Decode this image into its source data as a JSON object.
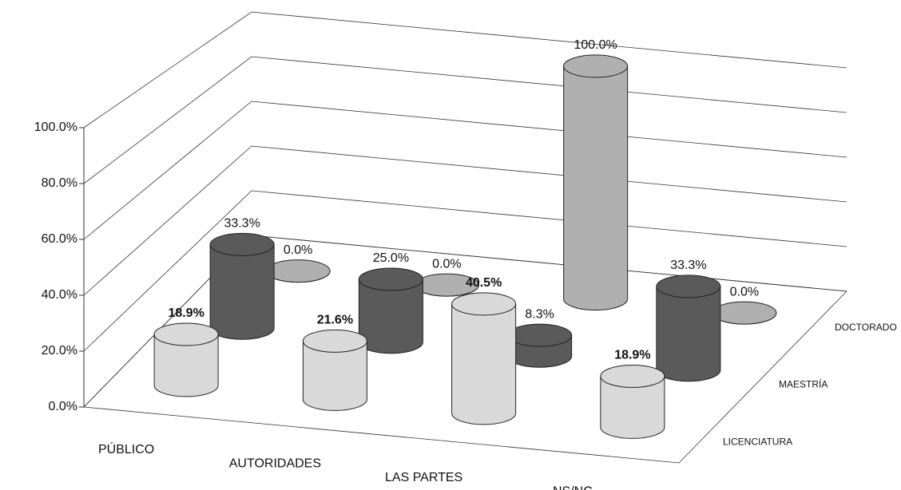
{
  "chart_data": {
    "type": "bar3d",
    "categories": [
      "PÚBLICO",
      "AUTORIDADES",
      "LAS PARTES",
      "NS/NC"
    ],
    "series": [
      {
        "name": "LICENCIATURA",
        "color": "#d9d9d9",
        "values": [
          18.9,
          21.6,
          40.5,
          18.9
        ],
        "value_labels": [
          "18.9%",
          "21.6%",
          "40.5%",
          "18.9%"
        ]
      },
      {
        "name": "MAESTRÍA",
        "color": "#5a5a5a",
        "values": [
          33.3,
          25.0,
          8.3,
          33.3
        ],
        "value_labels": [
          "33.3%",
          "25.0%",
          "8.3%",
          "33.3%"
        ]
      },
      {
        "name": "DOCTORADO",
        "color": "#b0b0b0",
        "values": [
          0.0,
          0.0,
          100.0,
          0.0
        ],
        "value_labels": [
          "0.0%",
          "0.0%",
          "100.0%",
          "0.0%"
        ]
      }
    ],
    "ylim": [
      0,
      100
    ],
    "yticks": [
      {
        "value": 0,
        "label": "0.0%"
      },
      {
        "value": 20,
        "label": "20.0%"
      },
      {
        "value": 40,
        "label": "40.0%"
      },
      {
        "value": 60,
        "label": "60.0%"
      },
      {
        "value": 80,
        "label": "80.0%"
      },
      {
        "value": 100,
        "label": "100.0%"
      }
    ],
    "grid": true
  }
}
